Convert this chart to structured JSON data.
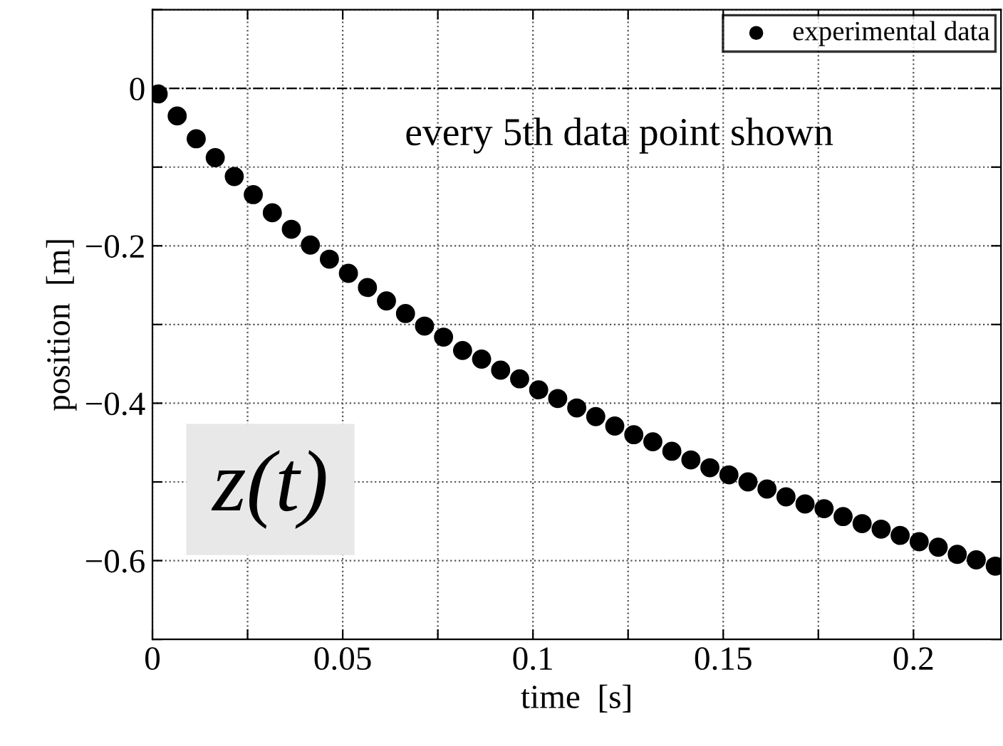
{
  "chart_data": {
    "type": "scatter",
    "xlabel": "time  [s]",
    "ylabel": "position  [m]",
    "x": [
      0.0015,
      0.0065,
      0.0115,
      0.0165,
      0.0215,
      0.0265,
      0.0315,
      0.0365,
      0.0415,
      0.0465,
      0.0515,
      0.0565,
      0.0615,
      0.0665,
      0.0715,
      0.0765,
      0.0815,
      0.0865,
      0.0915,
      0.0965,
      0.1015,
      0.1065,
      0.1115,
      0.1165,
      0.1215,
      0.1265,
      0.1315,
      0.1365,
      0.1415,
      0.1465,
      0.1515,
      0.1565,
      0.1615,
      0.1665,
      0.1715,
      0.1765,
      0.1815,
      0.1865,
      0.1915,
      0.1965,
      0.2015,
      0.2065,
      0.2115,
      0.2165,
      0.2215
    ],
    "series": [
      {
        "name": "experimental data",
        "color": "#000000",
        "marker": "circle",
        "values": [
          -0.007,
          -0.035,
          -0.064,
          -0.088,
          -0.112,
          -0.135,
          -0.158,
          -0.179,
          -0.199,
          -0.217,
          -0.235,
          -0.253,
          -0.27,
          -0.286,
          -0.302,
          -0.316,
          -0.333,
          -0.344,
          -0.358,
          -0.369,
          -0.383,
          -0.394,
          -0.406,
          -0.417,
          -0.429,
          -0.44,
          -0.449,
          -0.461,
          -0.472,
          -0.482,
          -0.491,
          -0.5,
          -0.509,
          -0.519,
          -0.528,
          -0.534,
          -0.544,
          -0.553,
          -0.56,
          -0.568,
          -0.576,
          -0.583,
          -0.592,
          -0.599,
          -0.607
        ]
      }
    ],
    "xlim": [
      0,
      0.223
    ],
    "ylim": [
      -0.7,
      0.1
    ],
    "xticks": [
      0,
      {
        "value": 0.025,
        "label": null
      },
      0.05,
      {
        "value": 0.075,
        "label": null
      },
      0.1,
      {
        "value": 0.125,
        "label": null
      },
      0.15,
      {
        "value": 0.175,
        "label": null
      },
      0.2
    ],
    "yticks": [
      {
        "value": -0.7,
        "label": null
      },
      {
        "value": -0.6,
        "label": "−0.6"
      },
      {
        "value": -0.5,
        "label": null
      },
      {
        "value": -0.4,
        "label": "−0.4"
      },
      {
        "value": -0.3,
        "label": null
      },
      {
        "value": -0.2,
        "label": "−0.2"
      },
      {
        "value": -0.1,
        "label": null
      },
      0,
      {
        "value": 0.1,
        "label": null
      }
    ],
    "ref_lines": [
      {
        "axis": "y",
        "value": 0,
        "color": "#000000",
        "line_style": "dashdot"
      }
    ],
    "annotations": [
      "every 5th data point shown",
      "z(t)"
    ],
    "grid": true,
    "legend": "top right"
  }
}
